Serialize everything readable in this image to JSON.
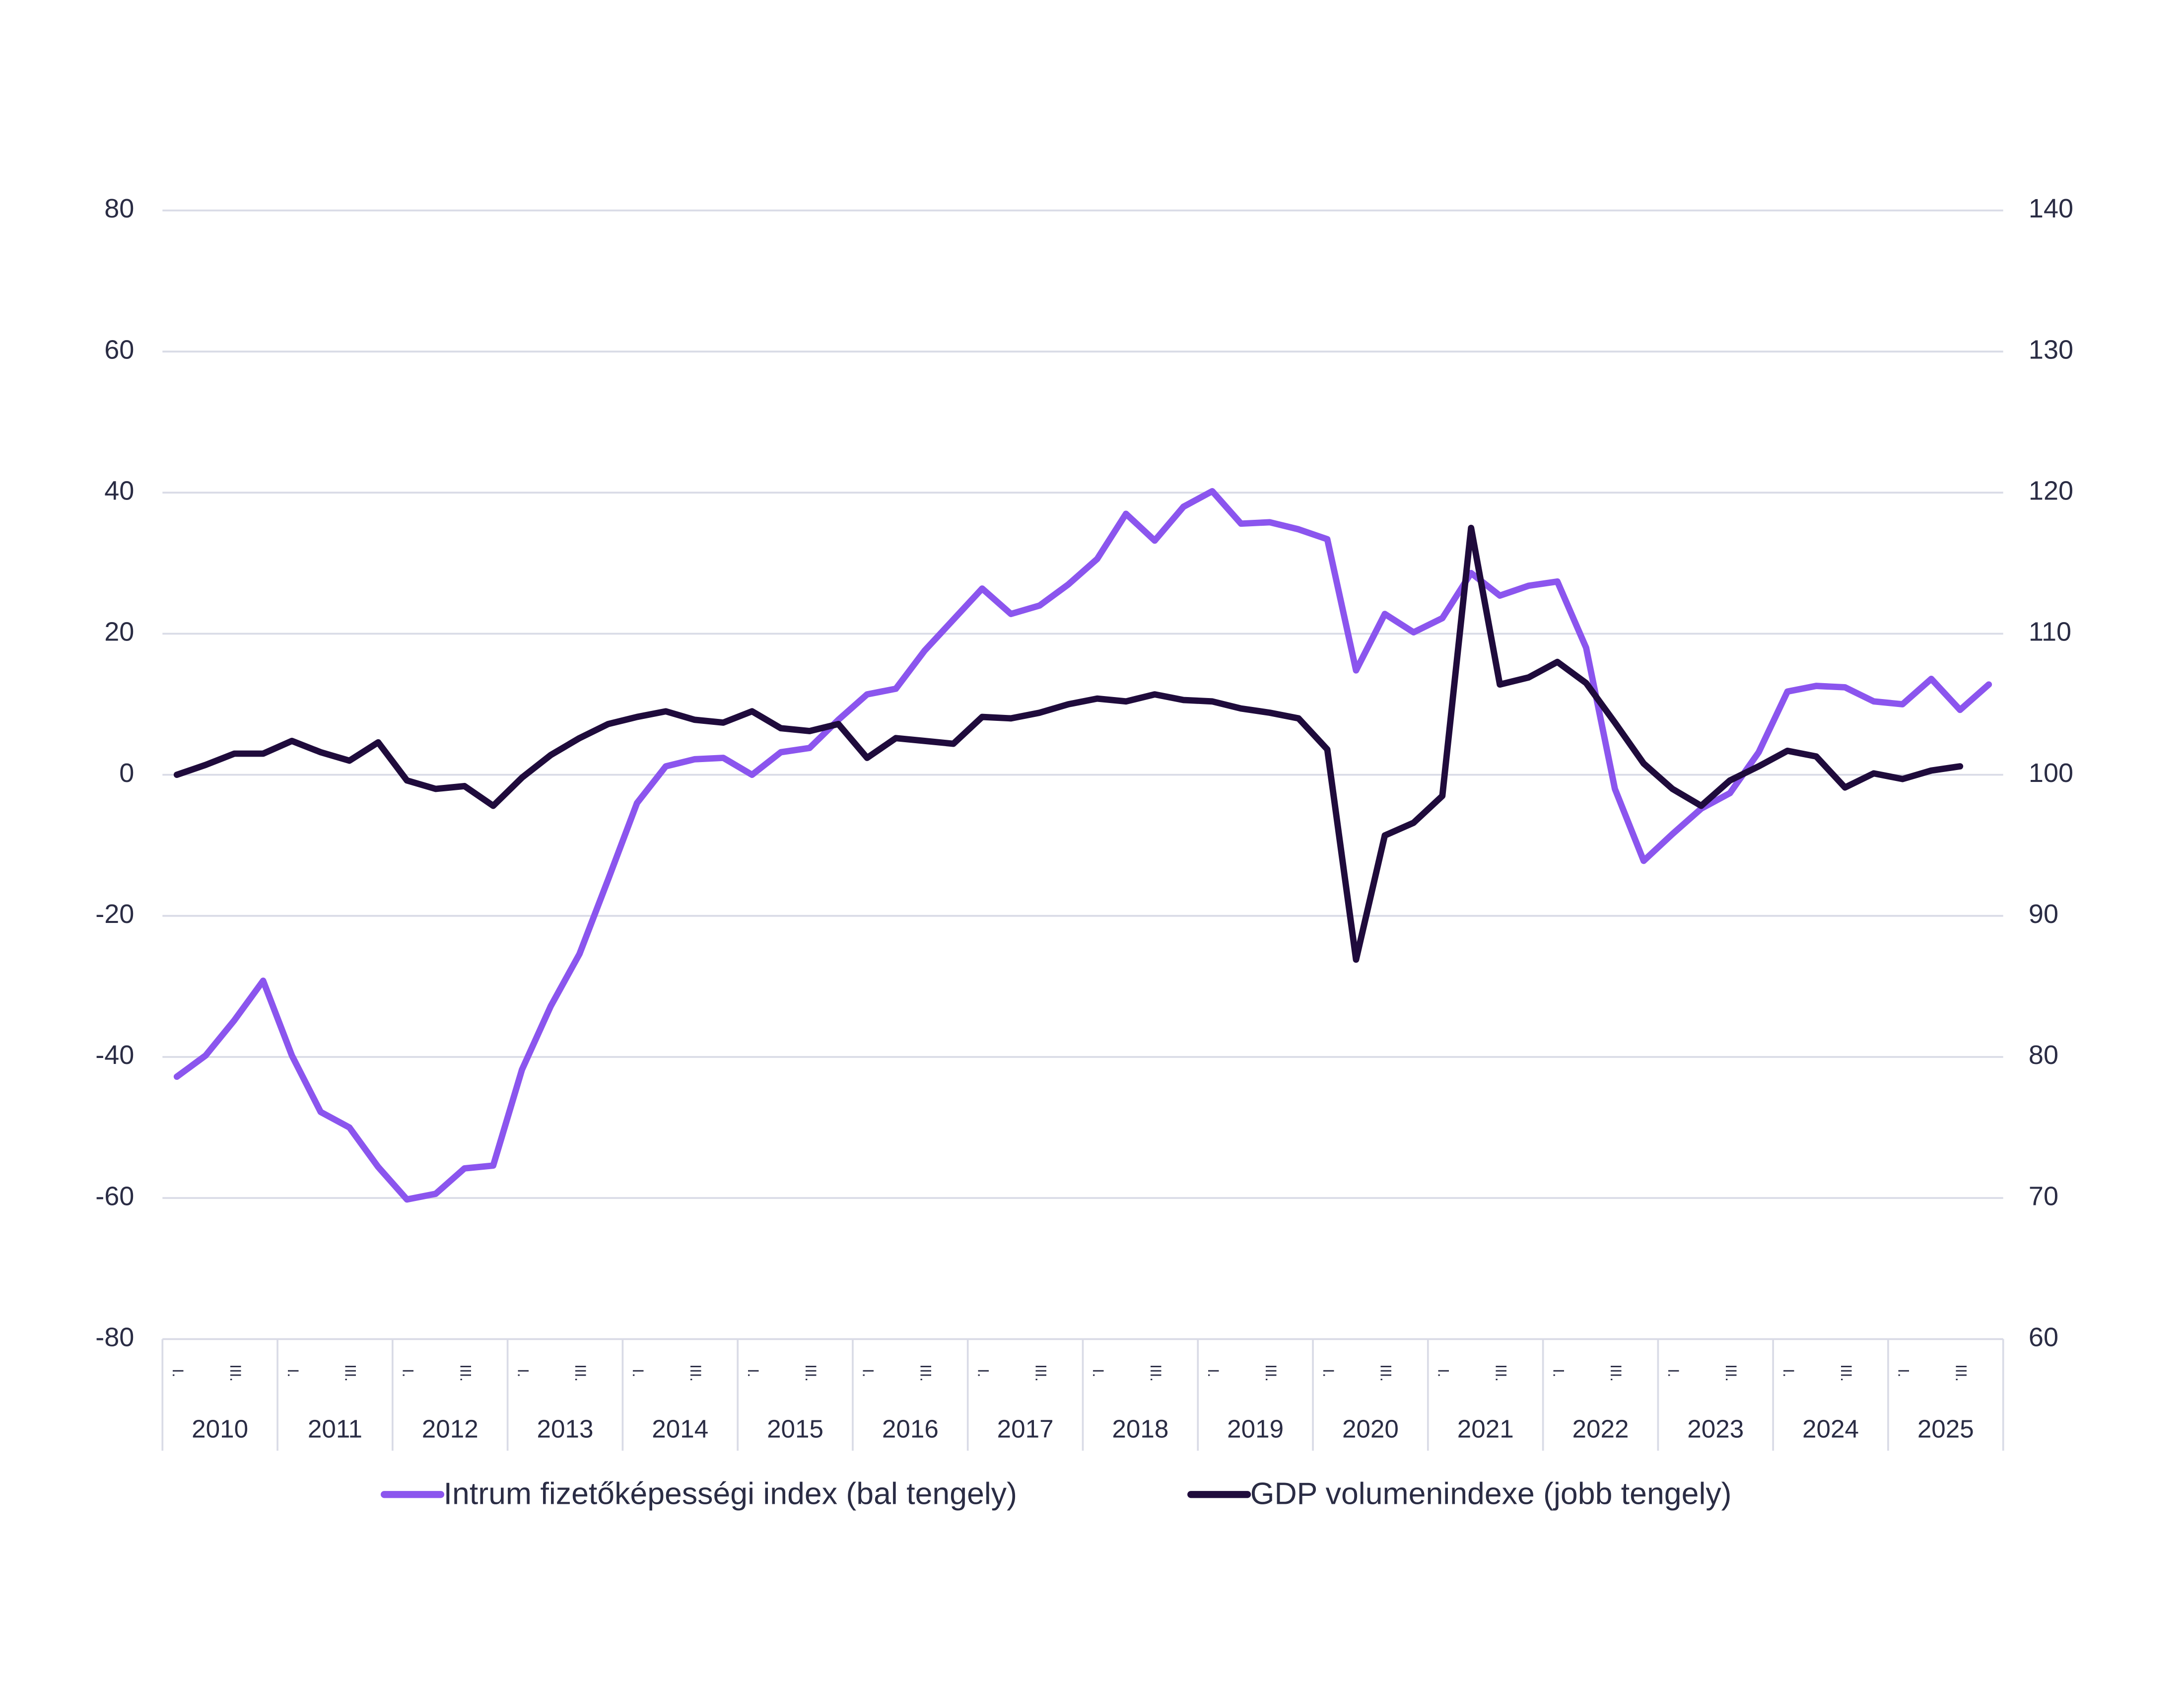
{
  "chart_data": {
    "type": "line",
    "years": [
      "2010",
      "2011",
      "2012",
      "2013",
      "2014",
      "2015",
      "2016",
      "2017",
      "2018",
      "2019",
      "2020",
      "2021",
      "2022",
      "2023",
      "2024",
      "2025"
    ],
    "categories": [
      "I.",
      null,
      "III.",
      null,
      "I.",
      null,
      "III.",
      null,
      "I.",
      null,
      "III.",
      null,
      "I.",
      null,
      "III.",
      null,
      "I.",
      null,
      "III.",
      null,
      "I.",
      null,
      "III.",
      null,
      "I.",
      null,
      "III.",
      null,
      "I.",
      null,
      "III.",
      null,
      "I.",
      null,
      "III.",
      null,
      "I.",
      null,
      "III.",
      null,
      "I.",
      null,
      "III.",
      null,
      "I.",
      null,
      "III.",
      null,
      "I.",
      null,
      "III.",
      null,
      "I.",
      null,
      "III.",
      null,
      "I.",
      null,
      "III.",
      null,
      "I.",
      null,
      "III.",
      null
    ],
    "series": [
      {
        "name": "Intrum fizetőképességi index (bal tengely)",
        "color": "#8b55ee",
        "axis": "y",
        "values": [
          -42.8,
          -39.8,
          -34.8,
          -29.2,
          -39.8,
          -47.8,
          -50,
          -55.6,
          -60.2,
          -59.4,
          -55.8,
          -55.4,
          -41.8,
          -32.8,
          -25.4,
          -14.8,
          -4,
          1.2,
          2.2,
          2.4,
          0,
          3.2,
          3.8,
          7.8,
          11.4,
          12.2,
          17.6,
          22,
          26.4,
          22.8,
          24,
          27,
          30.6,
          37,
          33.2,
          38,
          40.2,
          35.6,
          35.8,
          34.8,
          33.4,
          14.8,
          22.8,
          20.2,
          22.2,
          28.6,
          25.4,
          26.8,
          27.4,
          18,
          -2,
          -12.2,
          -8.4,
          -4.8,
          -2.6,
          3.2,
          11.8,
          12.6,
          12.4,
          10.4,
          10,
          13.6,
          9.2,
          12.8
        ]
      },
      {
        "name": "GDP volumenindexe (jobb tengely)",
        "color": "#1f0b3c",
        "axis": "y2",
        "values": [
          100,
          100.7,
          101.5,
          101.5,
          102.4,
          101.6,
          101,
          102.3,
          99.6,
          99,
          99.2,
          97.8,
          99.8,
          101.4,
          102.6,
          103.6,
          104.1,
          104.5,
          103.9,
          103.7,
          104.5,
          103.3,
          103.1,
          103.6,
          101.2,
          102.6,
          102.4,
          102.2,
          104.1,
          104,
          104.4,
          105,
          105.4,
          105.2,
          105.7,
          105.3,
          105.2,
          104.7,
          104.4,
          104,
          101.8,
          86.9,
          95.7,
          96.6,
          98.5,
          117.5,
          106.4,
          106.9,
          108,
          106.5,
          103.7,
          100.8,
          99,
          97.8,
          99.6,
          100.6,
          101.7,
          101.3,
          99.1,
          100.1,
          99.7,
          100.3,
          100.6,
          null
        ]
      }
    ],
    "ylim": [
      -80,
      80
    ],
    "yticks": [
      -80,
      -60,
      -40,
      -20,
      0,
      20,
      40,
      60,
      80
    ],
    "y2lim": [
      60,
      140
    ],
    "y2ticks": [
      60,
      70,
      80,
      90,
      100,
      110,
      120,
      130,
      140
    ],
    "grid": true,
    "legend": "bottom"
  }
}
